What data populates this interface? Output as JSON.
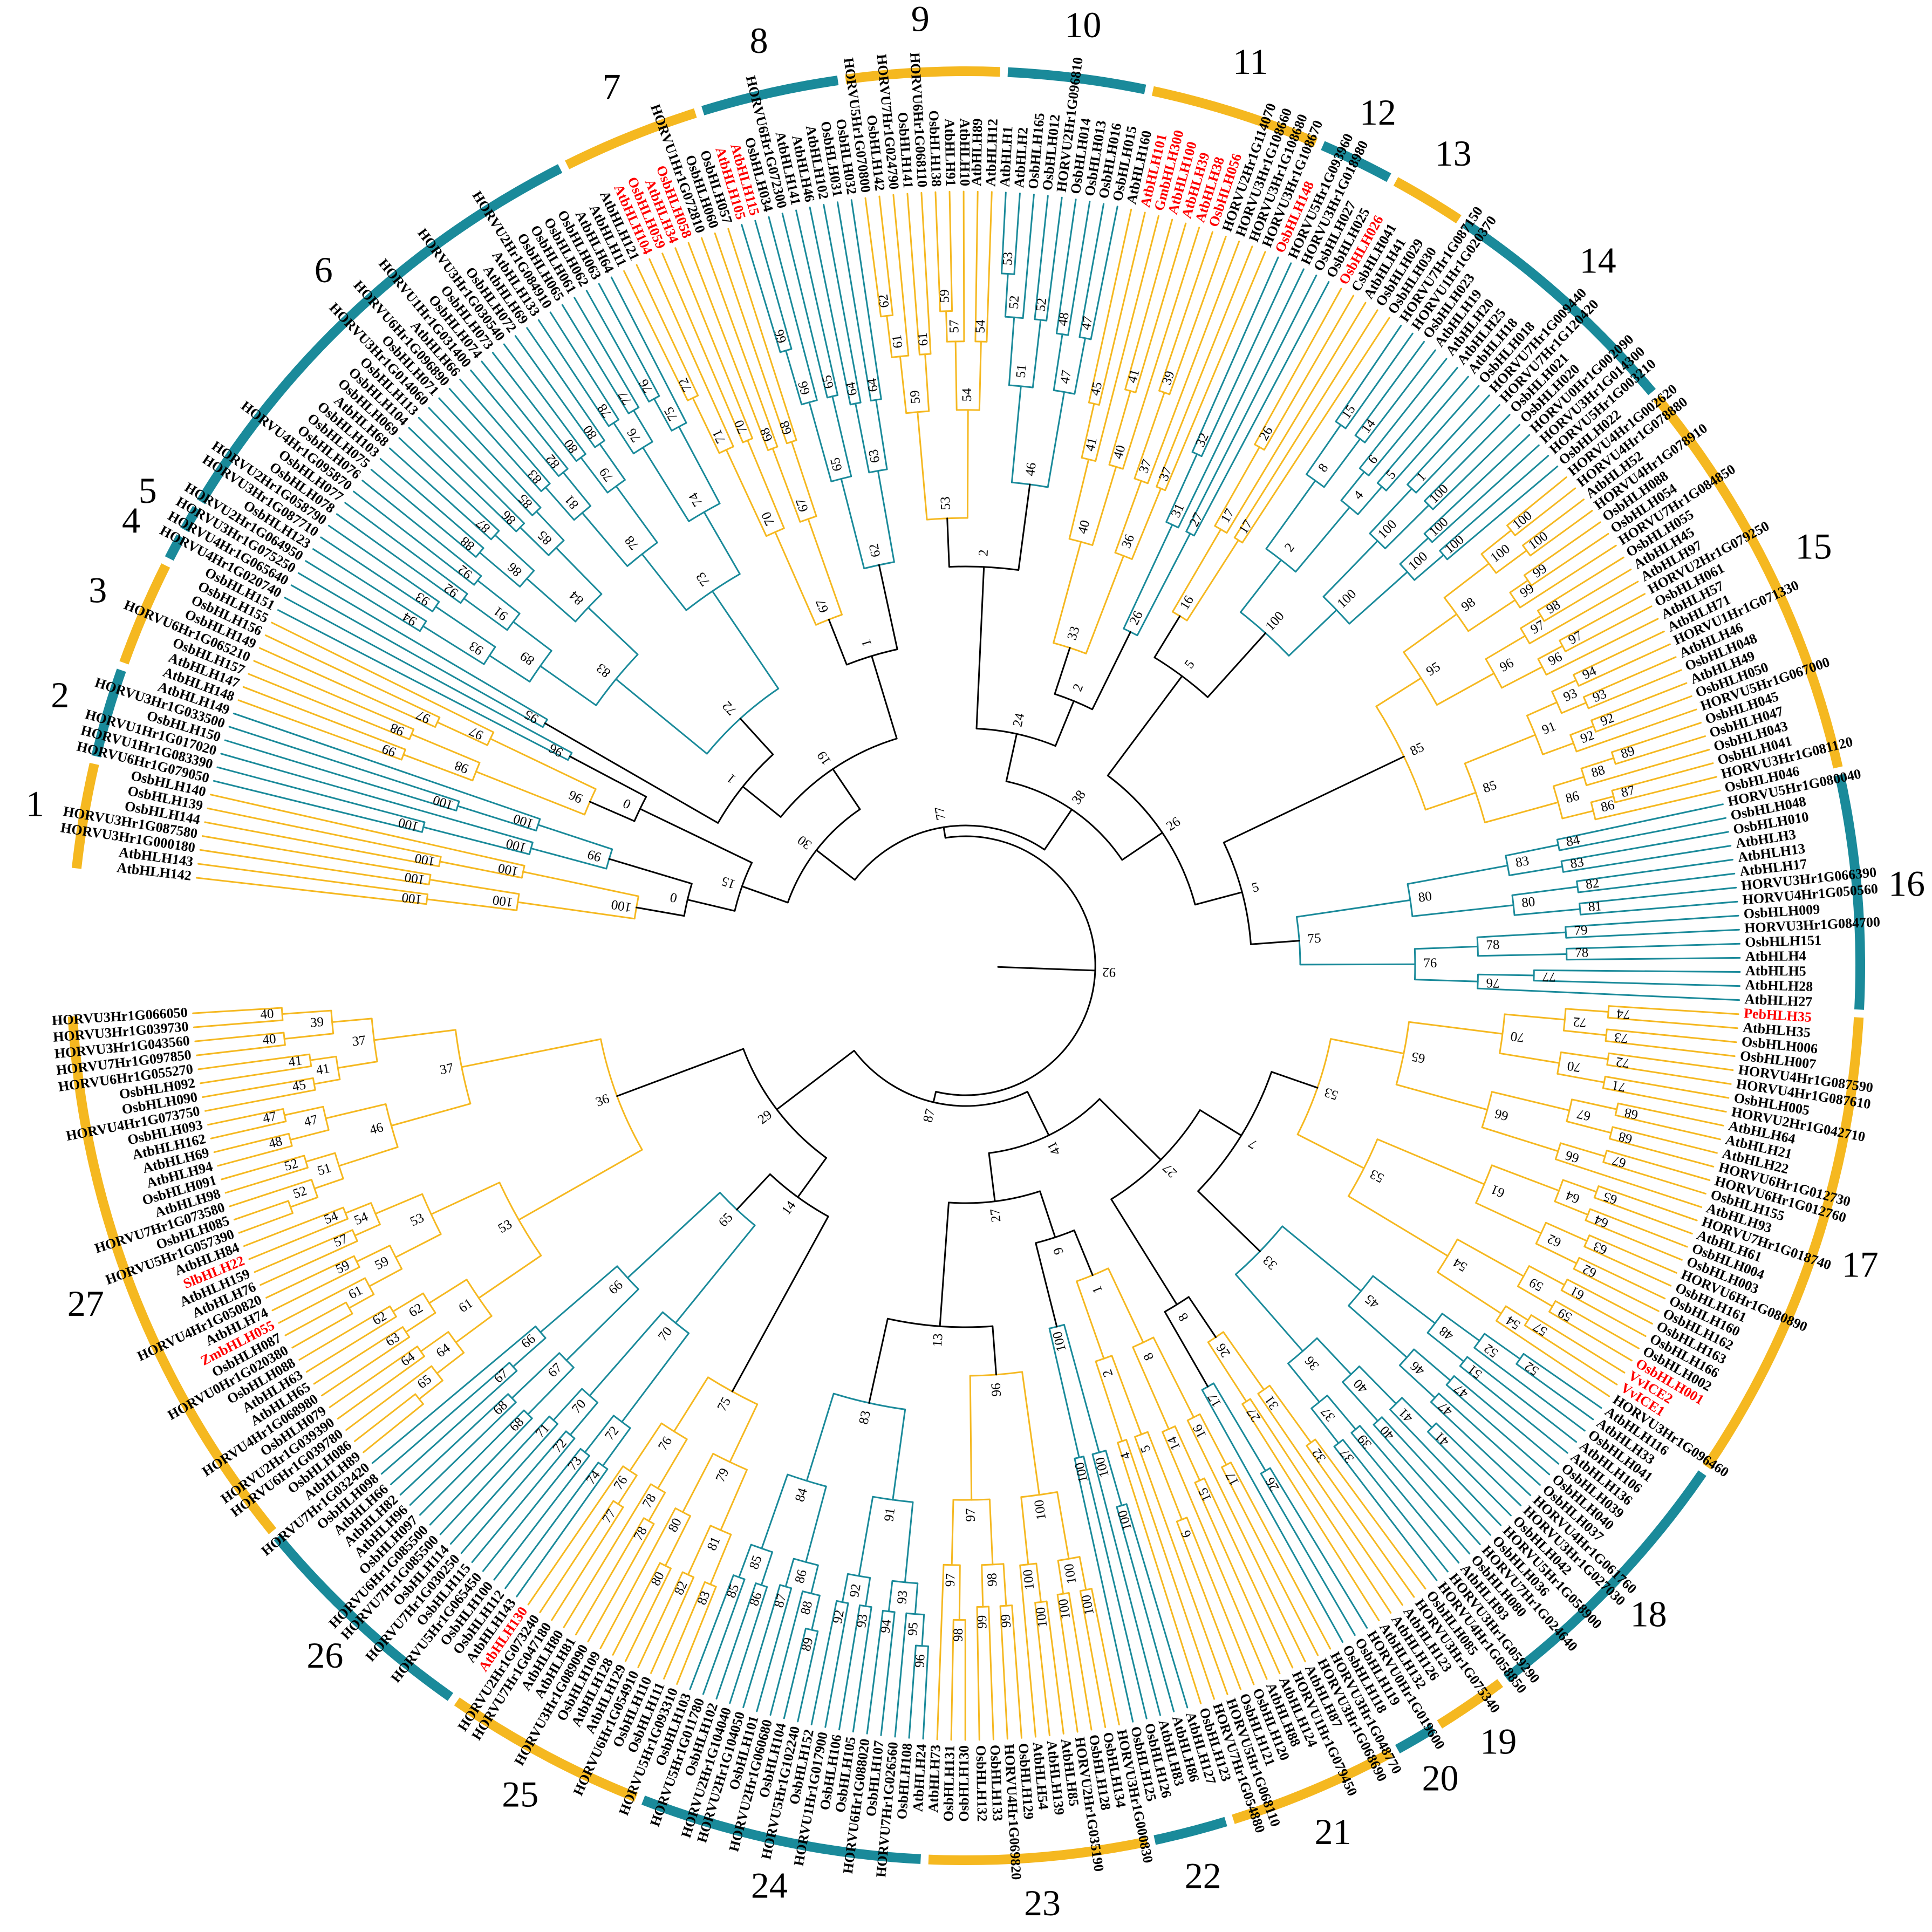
{
  "colors": {
    "yellow": "#F5B820",
    "teal": "#1A8A9A",
    "black": "#000000",
    "highlight": "#FF0000",
    "gap": "#EBEBEB"
  },
  "clades": [
    {
      "label": "1",
      "color": "yellow",
      "labels": [
        "AtbHLH142",
        "AtbHLH143",
        "HORVU3Hr1G000180",
        "HORVU3Hr1G087580",
        "OsbHLH144",
        "OsbHLH139",
        "OsbHLH140"
      ]
    },
    {
      "label": "2",
      "color": "teal",
      "labels": [
        "HORVU6Hr1G079050",
        "HORVU1Hr1G083390",
        "HORVU1Hr1G017020",
        "OsbHLH150",
        "HORVU3Hr1G033500",
        "AtbHLH149"
      ]
    },
    {
      "label": "3",
      "color": "yellow",
      "labels": [
        "AtbHLH148",
        "AtbHLH147",
        "OsbHLH157",
        "HORVU6Hr1G065210",
        "OsbHLH149",
        "OsbHLH156",
        "OsbHLH155"
      ]
    },
    {
      "label": "4",
      "color": "teal",
      "labels": [
        "OsbHLH151",
        "HORVU4Hr1G020740"
      ]
    },
    {
      "label": "5",
      "color": "teal",
      "labels": [
        "HORVU4Hr1G065640",
        "HORVU3Hr1G075250"
      ]
    },
    {
      "label": "6",
      "color": "teal",
      "labels": [
        "HORVU2Hr1G064950",
        "OsbHLH123",
        "HORVU3Hr1G087710",
        "HORVU2Hr1G058790",
        "OsbHLH078",
        "OsbHLH077",
        "HORVU4Hr1G095870",
        "OsbHLH076",
        "OsbHLH075",
        "OsbHLH103",
        "AtbHLH68",
        "OsbHLH069",
        "OsbHLH104",
        "OsbHLH113",
        "HORVU3Hr1G014060",
        "OsbHLH071",
        "HORVU6Hr1G096890",
        "AtbHLH66",
        "HORVU1Hr1G031400",
        "OsbHLH074",
        "OsbHLH073",
        "HORVU3Hr1G030540",
        "OsbHLH072",
        "AtbHLH69",
        "AtbHLH133",
        "HORVU2Hr1G084910",
        "OsbHLH065",
        "OsbHLH061",
        "OsbHLH062",
        "OsbHLH063",
        "AtbHLH64"
      ]
    },
    {
      "label": "7",
      "color": "yellow",
      "labels": [
        "AtbHLH11",
        "AtbHLH121",
        "AtbHLH104",
        "OsbHLH059",
        "AtbHLH34",
        "OsbHLH058",
        "HORVU1Hr1G072810",
        "OsbHLH060",
        "OsbHLH057"
      ]
    },
    {
      "label": "8",
      "color": "teal",
      "labels": [
        "AtbHLH105",
        "AtbHLH115",
        "OsbHLH034",
        "HORVU6Hr1G072300",
        "AtbHLH141",
        "AtbHLH46",
        "AtbHLH102",
        "OsbHLH031",
        "OsbHLH032"
      ]
    },
    {
      "label": "9",
      "color": "yellow",
      "labels": [
        "HORVU5Hr1G070800",
        "OsbHLH142",
        "HORVU7Hr1G024790",
        "OsbHLH141",
        "HORVU6Hr1G068110",
        "OsbHLH138",
        "AtbHLH91",
        "AtbHLH10",
        "AtbHLH89",
        "AtbHLH12"
      ]
    },
    {
      "label": "10",
      "color": "teal",
      "labels": [
        "AtbHLH1",
        "AtbHLH2",
        "OsbHLH165",
        "OsbHLH012",
        "HORVU2Hr1G096810",
        "OsbHLH014",
        "OsbHLH013",
        "OsbHLH016",
        "OsbHLH015"
      ]
    },
    {
      "label": "11",
      "color": "yellow",
      "labels": [
        "AtbHLH160",
        "AtbHLH101",
        "GmbHLH300",
        "AtbHLH100",
        "AtbHLH39",
        "AtbHLH38",
        "OsbHLH056",
        "HORVU2Hr1G114070",
        "HORVU3Hr1G108660",
        "HORVU3Hr1G108680",
        "HORVU3Hr1G108670"
      ]
    },
    {
      "label": "12",
      "color": "teal",
      "labels": [
        "OsbHLH148",
        "HORVU5Hr1G093960",
        "HORVU3Hr1G018980",
        "OsbHLH027",
        "OsbHLH025"
      ]
    },
    {
      "label": "13",
      "color": "yellow",
      "labels": [
        "OsbHLH026",
        "CsbHLH041",
        "AtbHLH41",
        "OsbHLH029",
        "OsbHLH030"
      ]
    },
    {
      "label": "14",
      "color": "teal",
      "labels": [
        "HORVU7Hr1G087150",
        "HORVU1Hr1G020370",
        "OsbHLH023",
        "AtbHLH19",
        "AtbHLH20",
        "AtbHLH25",
        "AtbHLH18",
        "OsbHLH018",
        "HORVU7Hr1G009440",
        "HORVU7Hr1G120420",
        "OsbHLH021",
        "OsbHLH020",
        "HORVU0Hr1G002090",
        "HORVU3Hr1G014300",
        "HORVU5Hr1G003210",
        "OsbHLH022"
      ]
    },
    {
      "label": "15",
      "color": "yellow",
      "labels": [
        "HORVU4Hr1G002620",
        "HORVU4Hr1G078880",
        "AtbHLH52",
        "HORVU4Hr1G078910",
        "OsbHLH088",
        "OsbHLH054",
        "HORVU7Hr1G084850",
        "OsbHLH055",
        "AtbHLH45",
        "AtbHLH97",
        "HORVU2Hr1G079250",
        "OsbHLH061",
        "AtbHLH57",
        "AtbHLH71",
        "HORVU1Hr1G071330",
        "AtbHLH46",
        "OsbHLH048",
        "AtbHLH49",
        "OsbHLH050",
        "HORVU5Hr1G067000",
        "OsbHLH045",
        "OsbHLH047",
        "OsbHLH043",
        "OsbHLH041",
        "HORVU3Hr1G081120",
        "OsbHLH046"
      ]
    },
    {
      "label": "16",
      "color": "teal",
      "labels": [
        "HORVU5Hr1G080040",
        "OsbHLH048",
        "OsbHLH010",
        "AtbHLH3",
        "AtbHLH13",
        "AtbHLH17",
        "HORVU3Hr1G066390",
        "HORVU4Hr1G050560",
        "OsbHLH009",
        "HORVU3Hr1G084700",
        "OsbHLH151",
        "AtbHLH4",
        "AtbHLH5",
        "AtbHLH28",
        "AtbHLH27"
      ]
    },
    {
      "label": "17",
      "color": "yellow",
      "labels": [
        "PebHLH35",
        "AtbHLH35",
        "OsbHLH006",
        "OsbHLH007",
        "HORVU4Hr1G087590",
        "HORVU4Hr1G087610",
        "OsbHLH005",
        "HORVU2Hr1G042710",
        "AtbHLH64",
        "AtbHLH21",
        "AtbHLH22",
        "HORVU6Hr1G012730",
        "HORVU6Hr1G012760",
        "OsbHLH155",
        "AtbHLH93",
        "HORVU7Hr1G018740",
        "AtbHLH61",
        "OsbHLH004",
        "OsbHLH003",
        "HORVU6Hr1G080890",
        "OsbHLH161",
        "OsbHLH160",
        "OsbHLH162",
        "OsbHLH163",
        "OsbHLH166",
        "OsbHLH002",
        "OsbHLH001",
        "VvICE2",
        "VvICE1",
        "HORVU3Hr1G096460"
      ]
    },
    {
      "label": "18",
      "color": "teal",
      "labels": [
        "AtbHLH116",
        "AtbHLH33",
        "OsbHLH041",
        "AtbHLH106",
        "AtbHLH136",
        "OsbHLH039",
        "OsbHLH040",
        "OsbHLH037",
        "HORVU4Hr1G061760",
        "HORVU3Hr1G027030",
        "OsbHLH042",
        "HORVU5Hr1G058900",
        "OsbHLH036",
        "HORVU7Hr1G024640",
        "OsbHLH080",
        "AtbHLH93",
        "HORVU3Hr1G059290",
        "HORVU4Hr1G058850"
      ]
    },
    {
      "label": "19",
      "color": "yellow",
      "labels": [
        "OsbHLH085",
        "HORVU3Hr1G075340",
        "AtbHLH123",
        "AtbHLH126",
        "AtbHLH132"
      ]
    },
    {
      "label": "20",
      "color": "teal",
      "labels": [
        "HORVU0Hr1G019600",
        "OsbHLH119",
        "OsbHLH118"
      ]
    },
    {
      "label": "21",
      "color": "yellow",
      "labels": [
        "HORVU3Hr1G048770",
        "HORVU3Hr1G068690",
        "AtbHLH87",
        "HORVU1Hr1G079450",
        "AtbHLH124",
        "AtbHLH88",
        "OsbHLH120",
        "OsbHLH121",
        "HORVU5Hr1G068110",
        "HORVU7Hr1G054880",
        "OsbHLH123"
      ]
    },
    {
      "label": "22",
      "color": "teal",
      "labels": [
        "AtbHLH127",
        "AtbHLH86",
        "AtbHLH83",
        "OsbHLH126",
        "OsbHLH125"
      ]
    },
    {
      "label": "23",
      "color": "yellow",
      "labels": [
        "HORVU3Hr1G000830",
        "OsbHLH134",
        "OsbHLH128",
        "HORVU2Hr1G035190",
        "AtbHLH85",
        "AtbHLH139",
        "AtbHLH54",
        "OsbHLH129",
        "HORVU4Hr1G069820",
        "OsbHLH133",
        "OsbHLH132",
        "OsbHLH130",
        "OsbHLH131",
        "AtbHLH73"
      ]
    },
    {
      "label": "24",
      "color": "teal",
      "labels": [
        "AtbHLH24",
        "OsbHLH108",
        "HORVU7Hr1G026560",
        "OsbHLH107",
        "HORVU6Hr1G088020",
        "OsbHLH105",
        "OsbHLH106",
        "HORVU1Hr1G017900",
        "OsbHLH152",
        "HORVU5Hr1G102240",
        "OsbHLH104",
        "HORVU2Hr1G060680",
        "OsbHLH101",
        "HORVU2Hr1G104050",
        "HORVU2Hr1G104040",
        "OsbHLH102",
        "HORVU5Hr1G011780",
        "OsbHLH103"
      ]
    },
    {
      "label": "25",
      "color": "yellow",
      "labels": [
        "HORVU5Hr1G093310",
        "OsbHLH111",
        "OsbHLH110",
        "HORVU6Hr1G054910",
        "AtbHLH129",
        "AtbHLH128",
        "OsbHLH109",
        "HORVU3Hr1G089090",
        "AtbHLH81",
        "AtbHLH80",
        "HORVU7Hr1G047180",
        "HORVU2Hr1G073240",
        "AtbHLH130"
      ]
    },
    {
      "label": "26",
      "color": "teal",
      "labels": [
        "AtbHLH143",
        "OsbHLH112",
        "OsbHLH100",
        "HORVU5Hr1G065450",
        "OsbHLH115",
        "HORVU7Hr1G030250",
        "OsbHLH114",
        "HORVU7Hr1G085500",
        "HORVU6Hr1G085500",
        "OsbHLH097",
        "AtbHLH96",
        "AtbHLH82",
        "AtbHLH66",
        "OsbHLH098",
        "HORVU7Hr1G032420"
      ]
    },
    {
      "label": "27",
      "color": "yellow",
      "labels": [
        "AtbHLH89",
        "OsbHLH086",
        "HORVU6Hr1G039780",
        "HORVU2Hr1G039390",
        "OsbHLH079",
        "HORVU4Hr1G068980",
        "AtbHLH65",
        "AtbHLH63",
        "OsbHLH088",
        "HORVU0Hr1G020380",
        "OsbHLH087",
        "ZmbHLH055",
        "AtbHLH74",
        "HORVU4Hr1G050820",
        "AtbHLH76",
        "AtbHLH159",
        "SlbHLH22",
        "AtbHLH84",
        "HORVU5Hr1G057390",
        "OsbHLH085",
        "HORVU7Hr1G073580",
        "AtbHLH98",
        "OsbHLH091",
        "AtbHLH94",
        "AtbHLH69",
        "AtbHLH162",
        "OsbHLH093",
        "HORVU4Hr1G073750",
        "OsbHLH090",
        "OsbHLH092",
        "HORVU6Hr1G055270",
        "HORVU7Hr1G097850",
        "HORVU3Hr1G043560",
        "HORVU3Hr1G039730",
        "HORVU3Hr1G066050"
      ]
    }
  ],
  "highlighted": [
    "AtbHLH104",
    "AtbHLH34",
    "OsbHLH059",
    "OsbHLH058",
    "AtbHLH105",
    "AtbHLH115",
    "AtbHLH101",
    "GmbHLH300",
    "AtbHLH100",
    "AtbHLH39",
    "AtbHLH38",
    "OsbHLH056",
    "OsbHLH148",
    "OsbHLH026",
    "PebHLH35",
    "OsbHLH001",
    "VvICE1",
    "VvICE2",
    "AtbHLH130",
    "ZmbHLH055",
    "SlbHLH22"
  ],
  "backbone_support": [
    "0",
    "0",
    "1",
    "1",
    "2",
    "2",
    "5",
    "5",
    "7",
    "8",
    "9",
    "13",
    "14",
    "15",
    "19",
    "24",
    "26",
    "27",
    "27",
    "29",
    "30",
    "38",
    "41",
    "77",
    "87",
    "92",
    "93",
    "97",
    "99"
  ],
  "boot_values": [
    "100",
    "100",
    "100",
    "100",
    "100",
    "100",
    "100",
    "100",
    "100",
    "100",
    "99",
    "99",
    "98",
    "98",
    "97",
    "97",
    "96",
    "96",
    "95",
    "94",
    "93",
    "93",
    "92",
    "92",
    "91",
    "89",
    "88",
    "87",
    "86",
    "86",
    "85",
    "85",
    "84",
    "83",
    "83",
    "82",
    "81",
    "80",
    "80",
    "79",
    "78",
    "78",
    "77",
    "76",
    "76",
    "75",
    "74",
    "73",
    "72",
    "72",
    "71",
    "70",
    "70",
    "68",
    "68",
    "67",
    "67",
    "66",
    "66",
    "65",
    "65",
    "64",
    "64",
    "63",
    "62",
    "62",
    "61",
    "61",
    "59",
    "59",
    "57",
    "54",
    "54",
    "53",
    "53",
    "52",
    "52",
    "51",
    "48",
    "47",
    "47",
    "46",
    "45",
    "41",
    "41",
    "40",
    "40",
    "39",
    "37",
    "37",
    "36",
    "33",
    "32",
    "31",
    "27",
    "26",
    "26",
    "17",
    "17",
    "16",
    "15",
    "14",
    "8",
    "6",
    "5",
    "4",
    "2",
    "1"
  ]
}
